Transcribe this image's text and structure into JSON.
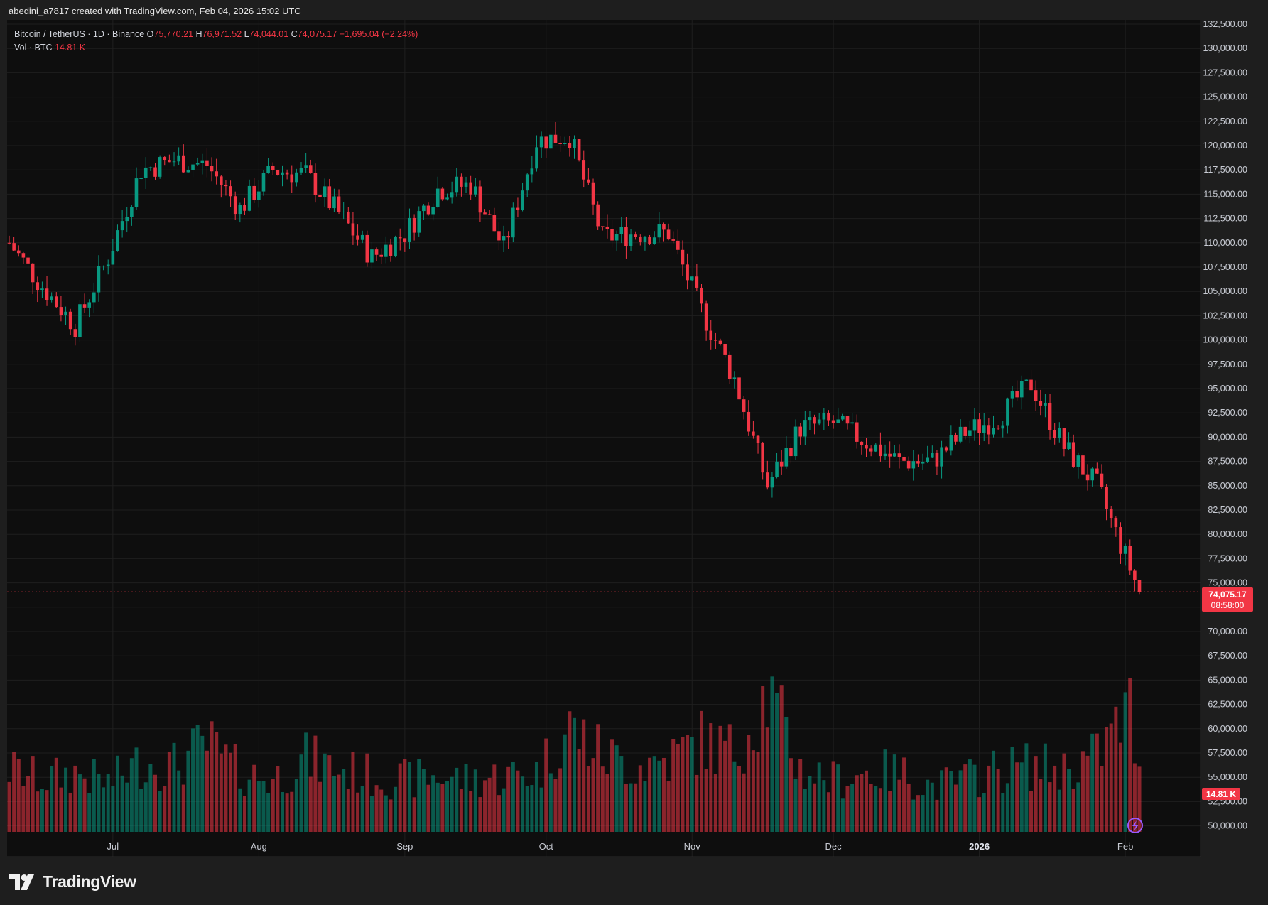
{
  "header": {
    "attribution": "abedini_a7817 created with TradingView.com, Feb 04, 2026 15:02 UTC"
  },
  "legend": {
    "symbol": "Bitcoin / TetherUS · 1D · Binance",
    "open_label": "O",
    "open": "75,770.21",
    "high_label": "H",
    "high": "76,971.52",
    "low_label": "L",
    "low": "74,044.01",
    "close_label": "C",
    "close": "74,075.17",
    "change": "−1,695.04 (−2.24%)",
    "vol_label": "Vol · BTC",
    "vol_value": "14.81 K"
  },
  "price_badge": {
    "price": "74,075.17",
    "countdown": "08:58:00"
  },
  "volume_badge": "14.81 K",
  "footer": {
    "brand": "TradingView"
  },
  "colors": {
    "up": "#089981",
    "down": "#f23645",
    "background": "#0e0e0e",
    "grid": "#1f1f1f"
  },
  "chart_data": {
    "type": "candlestick",
    "y_ticks": [
      "132,500.00",
      "130,000.00",
      "127,500.00",
      "125,000.00",
      "122,500.00",
      "120,000.00",
      "117,500.00",
      "115,000.00",
      "112,500.00",
      "110,000.00",
      "107,500.00",
      "105,000.00",
      "102,500.00",
      "100,000.00",
      "97,500.00",
      "95,000.00",
      "92,500.00",
      "90,000.00",
      "87,500.00",
      "85,000.00",
      "82,500.00",
      "80,000.00",
      "77,500.00",
      "75,000.00",
      "72,500.00",
      "70,000.00",
      "67,500.00",
      "65,000.00",
      "62,500.00",
      "60,000.00",
      "57,500.00",
      "55,000.00",
      "52,500.00",
      "50,000.00"
    ],
    "x_ticks": [
      {
        "label": "Jul",
        "x": "2025-07-01",
        "bold": false
      },
      {
        "label": "Aug",
        "x": "2025-08-01",
        "bold": false
      },
      {
        "label": "Sep",
        "x": "2025-09-01",
        "bold": false
      },
      {
        "label": "Oct",
        "x": "2025-10-01",
        "bold": false
      },
      {
        "label": "Nov",
        "x": "2025-11-01",
        "bold": false
      },
      {
        "label": "Dec",
        "x": "2025-12-01",
        "bold": false
      },
      {
        "label": "2026",
        "x": "2026-01-01",
        "bold": true
      },
      {
        "label": "Feb",
        "x": "2026-02-01",
        "bold": false
      }
    ],
    "dates": [
      "2025-06-09",
      "2025-06-16",
      "2025-06-23",
      "2025-06-30",
      "2025-07-07",
      "2025-07-14",
      "2025-07-21",
      "2025-07-28",
      "2025-08-04",
      "2025-08-11",
      "2025-08-18",
      "2025-08-25",
      "2025-09-01",
      "2025-09-08",
      "2025-09-15",
      "2025-09-22",
      "2025-09-29",
      "2025-10-06",
      "2025-10-13",
      "2025-10-20",
      "2025-10-27",
      "2025-11-03",
      "2025-11-10",
      "2025-11-17",
      "2025-11-24",
      "2025-12-01",
      "2025-12-08",
      "2025-12-15",
      "2025-12-22",
      "2025-12-29",
      "2026-01-05",
      "2026-01-12",
      "2026-01-19",
      "2026-01-26",
      "2026-02-02",
      "2026-02-04"
    ],
    "close": [
      110000,
      105500,
      101500,
      108500,
      117500,
      118500,
      118000,
      113500,
      117500,
      117000,
      113000,
      108500,
      111000,
      115500,
      116000,
      109500,
      120500,
      121000,
      110500,
      111000,
      111000,
      103000,
      96000,
      85000,
      91000,
      91500,
      89500,
      87500,
      87500,
      90500,
      92000,
      95500,
      89000,
      85000,
      76500,
      74075.17
    ],
    "volume_k": [
      18,
      15,
      17,
      14,
      20,
      19,
      25,
      17,
      15,
      21,
      18,
      16,
      15,
      16,
      15,
      16,
      17,
      30,
      22,
      19,
      21,
      26,
      23,
      40,
      18,
      15,
      17,
      17,
      13,
      15,
      18,
      19,
      18,
      22,
      35,
      14.81
    ],
    "volume_axis_note": "volume pane shares the lower portion of the price scale",
    "last_price": 74075.17
  }
}
